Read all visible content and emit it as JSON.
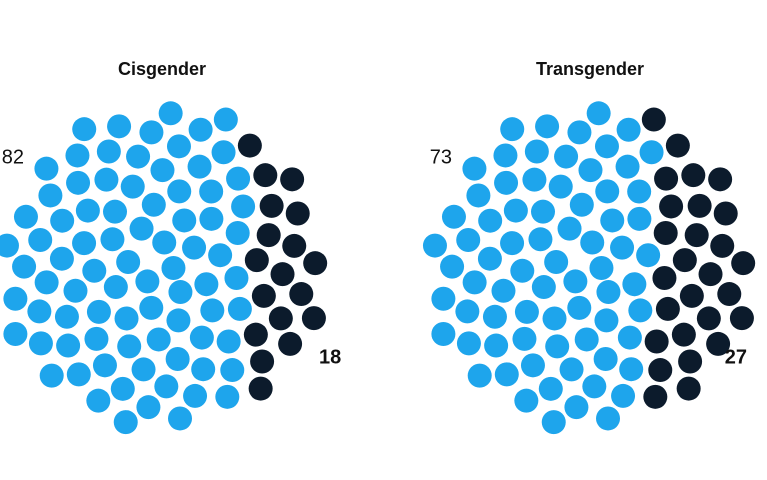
{
  "chart_data": [
    {
      "type": "dotpie",
      "title": "Cisgender",
      "values": [
        82,
        18
      ],
      "colors": [
        "#1ea5ec",
        "#0c1b2c"
      ]
    },
    {
      "type": "dotpie",
      "title": "Transgender",
      "values": [
        73,
        27
      ],
      "colors": [
        "#1ea5ec",
        "#0c1b2c"
      ]
    }
  ]
}
